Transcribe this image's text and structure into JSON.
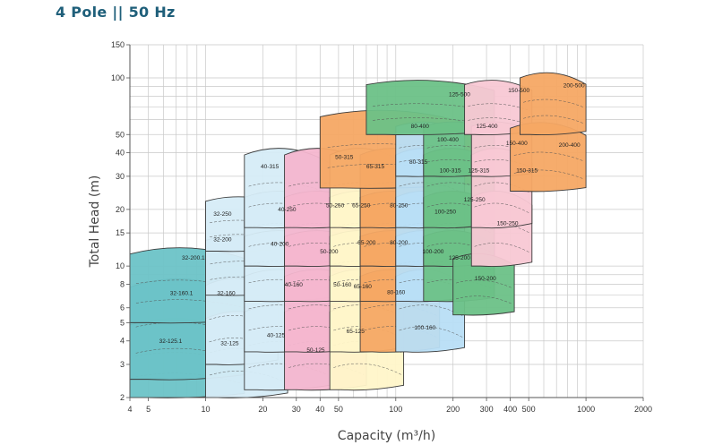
{
  "title": "4 Pole || 50 Hz",
  "chart_data": {
    "type": "area",
    "title": "4 Pole || 50 Hz",
    "xlabel": "Capacity (m³/h)",
    "ylabel": "Total Head (m)",
    "x_scale": "log",
    "y_scale": "log",
    "xlim": [
      4,
      2000
    ],
    "ylim": [
      2,
      150
    ],
    "grid": true,
    "xticks": [
      4,
      5,
      10,
      20,
      30,
      40,
      50,
      100,
      200,
      300,
      400,
      500,
      1000,
      2000
    ],
    "yticks": [
      2,
      3,
      4,
      5,
      6,
      8,
      10,
      15,
      20,
      30,
      40,
      50,
      100,
      150
    ],
    "zones": [
      {
        "label": "32-125.1",
        "color": "#6cc3c7",
        "q": [
          4,
          16
        ],
        "h": [
          2,
          5.5
        ],
        "lx": 5.7,
        "ly": 3.9
      },
      {
        "label": "32-160.1",
        "color": "#6cc3c7",
        "q": [
          4,
          17
        ],
        "h": [
          2.5,
          9
        ],
        "lx": 6.5,
        "ly": 7
      },
      {
        "label": "32-200.1",
        "color": "#6cc3c7",
        "q": [
          4,
          18
        ],
        "h": [
          5,
          13
        ],
        "lx": 7.5,
        "ly": 10.8
      },
      {
        "label": "32-125",
        "color": "#d6ecf7",
        "q": [
          10,
          27
        ],
        "h": [
          2,
          6
        ],
        "lx": 12,
        "ly": 3.8
      },
      {
        "label": "32-160",
        "color": "#d6ecf7",
        "q": [
          10,
          24
        ],
        "h": [
          3,
          9
        ],
        "lx": 11.5,
        "ly": 7
      },
      {
        "label": "32-200",
        "color": "#d6ecf7",
        "q": [
          10,
          30
        ],
        "h": [
          7,
          15
        ],
        "lx": 11,
        "ly": 13.5
      },
      {
        "label": "32-250",
        "color": "#d6ecf7",
        "q": [
          10,
          27
        ],
        "h": [
          12,
          24
        ],
        "lx": 11,
        "ly": 18.5
      },
      {
        "label": "40-125",
        "color": "#d6ecf7",
        "q": [
          16,
          45
        ],
        "h": [
          2.2,
          6.5
        ],
        "lx": 21,
        "ly": 4.2
      },
      {
        "label": "40-160",
        "color": "#d6ecf7",
        "q": [
          16,
          45
        ],
        "h": [
          3.5,
          10
        ],
        "lx": 26,
        "ly": 7.8
      },
      {
        "label": "40-200",
        "color": "#d6ecf7",
        "q": [
          16,
          45
        ],
        "h": [
          6.5,
          16
        ],
        "lx": 22,
        "ly": 12.8
      },
      {
        "label": "40-250",
        "color": "#d6ecf7",
        "q": [
          16,
          45
        ],
        "h": [
          10,
          26
        ],
        "lx": 24,
        "ly": 19.5
      },
      {
        "label": "40-315",
        "color": "#d6ecf7",
        "q": [
          16,
          45
        ],
        "h": [
          16,
          44
        ],
        "lx": 19.5,
        "ly": 33
      },
      {
        "label": "50-125",
        "color": "#f4b6cf",
        "q": [
          26,
          70
        ],
        "h": [
          2.2,
          6.5
        ],
        "lx": 34,
        "ly": 3.5
      },
      {
        "label": "50-160",
        "color": "#f4b6cf",
        "q": [
          26,
          70
        ],
        "h": [
          3.5,
          10
        ],
        "lx": 47,
        "ly": 7.8
      },
      {
        "label": "50-200",
        "color": "#f4b6cf",
        "q": [
          26,
          70
        ],
        "h": [
          6.5,
          16
        ],
        "lx": 40,
        "ly": 11.7
      },
      {
        "label": "50-250",
        "color": "#f4b6cf",
        "q": [
          26,
          70
        ],
        "h": [
          10,
          26
        ],
        "lx": 43,
        "ly": 20.5
      },
      {
        "label": "50-315",
        "color": "#f4b6cf",
        "q": [
          26,
          70
        ],
        "h": [
          16,
          44
        ],
        "lx": 48,
        "ly": 37
      },
      {
        "label": "65-125",
        "color": "#fff6c9",
        "q": [
          45,
          110
        ],
        "h": [
          2.2,
          6.5
        ],
        "lx": 55,
        "ly": 4.4
      },
      {
        "label": "65-160",
        "color": "#fff6c9",
        "q": [
          45,
          110
        ],
        "h": [
          3.5,
          10
        ],
        "lx": 60,
        "ly": 7.6
      },
      {
        "label": "65-200",
        "color": "#fff6c9",
        "q": [
          45,
          110
        ],
        "h": [
          6.5,
          16
        ],
        "lx": 63,
        "ly": 13
      },
      {
        "label": "65-250",
        "color": "#fff6c9",
        "q": [
          45,
          110
        ],
        "h": [
          10,
          26
        ],
        "lx": 59,
        "ly": 20.5
      },
      {
        "label": "65-315",
        "color": "#fff6c9",
        "q": [
          45,
          110
        ],
        "h": [
          16,
          44
        ],
        "lx": 70,
        "ly": 33
      },
      {
        "label": "80-160",
        "color": "#f5a864",
        "q": [
          65,
          170
        ],
        "h": [
          3.5,
          10
        ],
        "lx": 90,
        "ly": 7.1
      },
      {
        "label": "80-200",
        "color": "#f5a864",
        "q": [
          65,
          170
        ],
        "h": [
          6.5,
          16
        ],
        "lx": 93,
        "ly": 13
      },
      {
        "label": "80-250",
        "color": "#f5a864",
        "q": [
          65,
          170
        ],
        "h": [
          10,
          26
        ],
        "lx": 93,
        "ly": 20.5
      },
      {
        "label": "80-315",
        "color": "#f5a864",
        "q": [
          65,
          170
        ],
        "h": [
          16,
          44
        ],
        "lx": 118,
        "ly": 35
      },
      {
        "label": "80-400",
        "color": "#f5a864",
        "q": [
          40,
          250
        ],
        "h": [
          26,
          70
        ],
        "lx": 120,
        "ly": 54
      },
      {
        "label": "100-160",
        "color": "#b8def5",
        "q": [
          100,
          230
        ],
        "h": [
          3.5,
          10
        ],
        "lx": 125,
        "ly": 4.6
      },
      {
        "label": "100-200",
        "color": "#b8def5",
        "q": [
          100,
          230
        ],
        "h": [
          6.5,
          16
        ],
        "lx": 138,
        "ly": 11.7
      },
      {
        "label": "100-250",
        "color": "#b8def5",
        "q": [
          100,
          230
        ],
        "h": [
          10,
          26
        ],
        "lx": 160,
        "ly": 19
      },
      {
        "label": "100-315",
        "color": "#b8def5",
        "q": [
          100,
          230
        ],
        "h": [
          16,
          44
        ],
        "lx": 170,
        "ly": 31.5
      },
      {
        "label": "100-400",
        "color": "#b8def5",
        "q": [
          100,
          230
        ],
        "h": [
          30,
          60
        ],
        "lx": 165,
        "ly": 46
      },
      {
        "label": "125-200",
        "color": "#6cc187",
        "q": [
          140,
          330
        ],
        "h": [
          6.5,
          16
        ],
        "lx": 190,
        "ly": 10.8
      },
      {
        "label": "125-250",
        "color": "#6cc187",
        "q": [
          140,
          330
        ],
        "h": [
          10,
          26
        ],
        "lx": 228,
        "ly": 22
      },
      {
        "label": "125-315",
        "color": "#6cc187",
        "q": [
          140,
          330
        ],
        "h": [
          16,
          44
        ],
        "lx": 240,
        "ly": 31.5
      },
      {
        "label": "125-400",
        "color": "#6cc187",
        "q": [
          140,
          330
        ],
        "h": [
          30,
          60
        ],
        "lx": 265,
        "ly": 54
      },
      {
        "label": "125-500",
        "color": "#6cc187",
        "q": [
          70,
          330
        ],
        "h": [
          50,
          100
        ],
        "lx": 190,
        "ly": 80
      },
      {
        "label": "150-200",
        "color": "#6cc187",
        "q": [
          200,
          420
        ],
        "h": [
          5.5,
          12
        ],
        "lx": 260,
        "ly": 8.4
      },
      {
        "label": "150-250",
        "color": "#f8c8d4",
        "q": [
          250,
          520
        ],
        "h": [
          10,
          26
        ],
        "lx": 340,
        "ly": 16.5
      },
      {
        "label": "150-315",
        "color": "#f8c8d4",
        "q": [
          250,
          520
        ],
        "h": [
          16,
          44
        ],
        "lx": 430,
        "ly": 31.5
      },
      {
        "label": "150-400",
        "color": "#f8c8d4",
        "q": [
          250,
          520
        ],
        "h": [
          30,
          60
        ],
        "lx": 380,
        "ly": 44
      },
      {
        "label": "150-500",
        "color": "#f8c8d4",
        "q": [
          230,
          520
        ],
        "h": [
          50,
          100
        ],
        "lx": 390,
        "ly": 84
      },
      {
        "label": "200-400",
        "color": "#f5a864",
        "q": [
          400,
          1000
        ],
        "h": [
          25,
          60
        ],
        "lx": 720,
        "ly": 43
      },
      {
        "label": "200-500",
        "color": "#f5a864",
        "q": [
          450,
          1000
        ],
        "h": [
          50,
          110
        ],
        "lx": 760,
        "ly": 89
      }
    ]
  }
}
